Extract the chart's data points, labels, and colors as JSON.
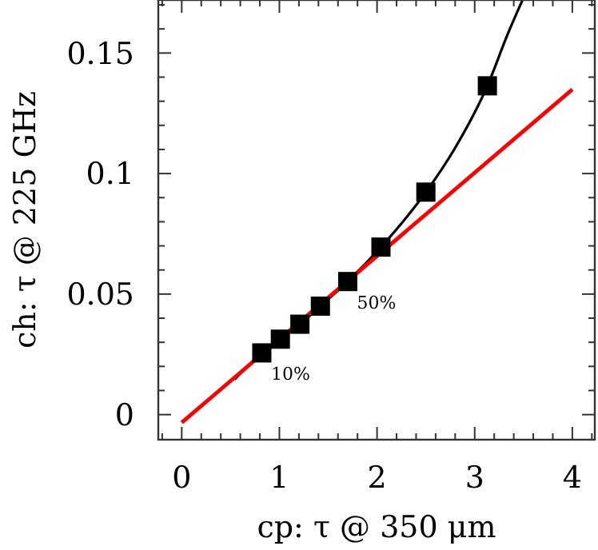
{
  "chart_data": {
    "type": "scatter",
    "xlabel": "cp: τ @ 350 μm",
    "ylabel": "ch: τ @ 225 GHz",
    "xlim": [
      -0.24,
      4.23
    ],
    "ylim": [
      -0.0104,
      0.172
    ],
    "xticks": [
      0,
      {
        "value": 0.2,
        "label": null
      },
      {
        "value": 0.4,
        "label": null
      },
      {
        "value": 0.6,
        "label": null
      },
      {
        "value": 0.8,
        "label": null
      },
      1,
      {
        "value": 1.2,
        "label": null
      },
      {
        "value": 1.4,
        "label": null
      },
      {
        "value": 1.6,
        "label": null
      },
      {
        "value": 1.8,
        "label": null
      },
      2,
      {
        "value": 2.2,
        "label": null
      },
      {
        "value": 2.4,
        "label": null
      },
      {
        "value": 2.6,
        "label": null
      },
      {
        "value": 2.8,
        "label": null
      },
      3,
      {
        "value": 3.2,
        "label": null
      },
      {
        "value": 3.4,
        "label": null
      },
      {
        "value": 3.6,
        "label": null
      },
      {
        "value": 3.8,
        "label": null
      },
      4,
      {
        "value": -0.2,
        "label": null
      },
      {
        "value": 4.2,
        "label": null
      }
    ],
    "yticks": [
      0,
      {
        "value": 0.01,
        "label": null
      },
      {
        "value": 0.02,
        "label": null
      },
      {
        "value": 0.03,
        "label": null
      },
      {
        "value": 0.04,
        "label": null
      },
      0.05,
      {
        "value": 0.06,
        "label": null
      },
      {
        "value": 0.07,
        "label": null
      },
      {
        "value": 0.08,
        "label": null
      },
      {
        "value": 0.09,
        "label": null
      },
      0.1,
      {
        "value": 0.11,
        "label": null
      },
      {
        "value": 0.12,
        "label": null
      },
      {
        "value": 0.13,
        "label": null
      },
      {
        "value": 0.14,
        "label": null
      },
      0.15,
      {
        "value": 0.16,
        "label": null
      },
      {
        "value": 0.17,
        "label": null
      }
    ],
    "series": [
      {
        "type": "line",
        "color": "#000000",
        "marker": "none",
        "x": [
          0.54,
          0.82,
          1.01,
          1.21,
          1.42,
          1.7,
          2.04,
          2.5,
          2.79,
          3.13,
          3.34,
          3.49
        ],
        "values": [
          0.0146,
          0.0256,
          0.0313,
          0.0375,
          0.045,
          0.0552,
          0.0695,
          0.0923,
          0.11,
          0.1364,
          0.158,
          0.172
        ]
      },
      {
        "type": "line",
        "color": "#ff0000",
        "marker": "none",
        "x": [
          0,
          4
        ],
        "values": [
          -0.0033,
          0.1349
        ]
      },
      {
        "color": "#000000",
        "marker": "square",
        "x": [
          0.82,
          1.01,
          1.21,
          1.42,
          1.7,
          2.04,
          2.5,
          3.13
        ],
        "values": [
          0.0256,
          0.0313,
          0.0375,
          0.045,
          0.0552,
          0.0695,
          0.0923,
          0.1364
        ]
      }
    ],
    "annotations": [
      {
        "text": "10%",
        "x": 0.82,
        "y": 0.0256
      },
      {
        "text": "50%",
        "x": 1.7,
        "y": 0.0552
      }
    ],
    "grid": false
  }
}
